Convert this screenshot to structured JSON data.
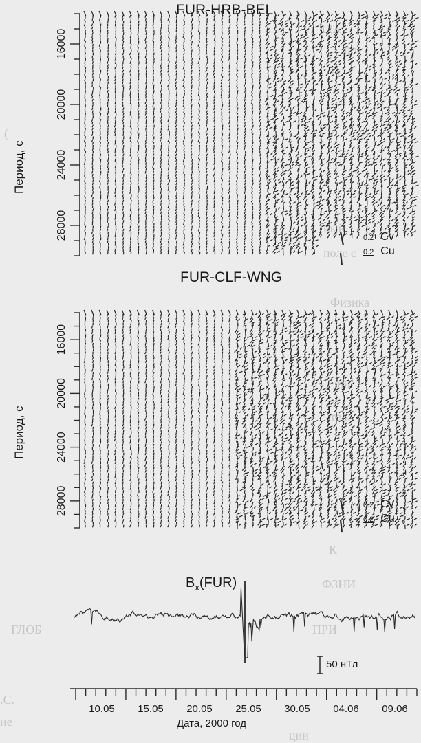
{
  "chart_data": [
    {
      "type": "vector-field",
      "title": "FUR-HRB-BEL",
      "ylabel": "Период, с",
      "yticks": [
        16000,
        20000,
        24000,
        28000
      ],
      "ylim": [
        14000,
        30000
      ],
      "legend": [
        {
          "scale": "0.2",
          "name": "Cv"
        },
        {
          "scale": "0.2",
          "name": "Cu"
        }
      ]
    },
    {
      "type": "vector-field",
      "title": "FUR-CLF-WNG",
      "ylabel": "Период, с",
      "yticks": [
        16000,
        20000,
        24000,
        28000
      ],
      "ylim": [
        14000,
        30000
      ],
      "legend": [
        {
          "scale": "0.2",
          "name": "Cv"
        },
        {
          "scale": "0.2",
          "name": "Cu"
        }
      ]
    },
    {
      "type": "line",
      "title": "Bx(FUR)",
      "title_main": "B",
      "title_sub": "x",
      "title_rest": "(FUR)",
      "scale_bar": "50 нТл",
      "xlabel": "Дата, 2000 год",
      "xticks": [
        "10.05",
        "15.05",
        "20.05",
        "25.05",
        "30.05",
        "04.06",
        "09.06"
      ]
    }
  ]
}
